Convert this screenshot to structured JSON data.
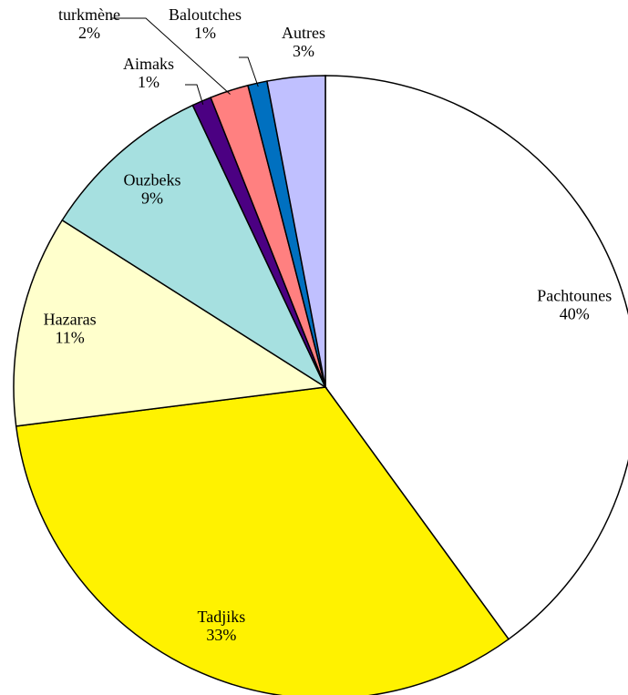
{
  "chart_data": {
    "type": "pie",
    "categories": [
      "Pachtounes",
      "Tadjiks",
      "Hazaras",
      "Ouzbeks",
      "Aimaks",
      "turkmène",
      "Baloutches",
      "Autres"
    ],
    "values": [
      40,
      33,
      11,
      9,
      1,
      2,
      1,
      3
    ],
    "value_labels": [
      "40%",
      "33%",
      "11%",
      "9%",
      "1%",
      "2%",
      "1%",
      "3%"
    ],
    "colors": [
      "#ffffff",
      "#fff200",
      "#ffffcc",
      "#a6e0e0",
      "#4b0082",
      "#ff8080",
      "#0070c0",
      "#c0c0ff"
    ]
  }
}
